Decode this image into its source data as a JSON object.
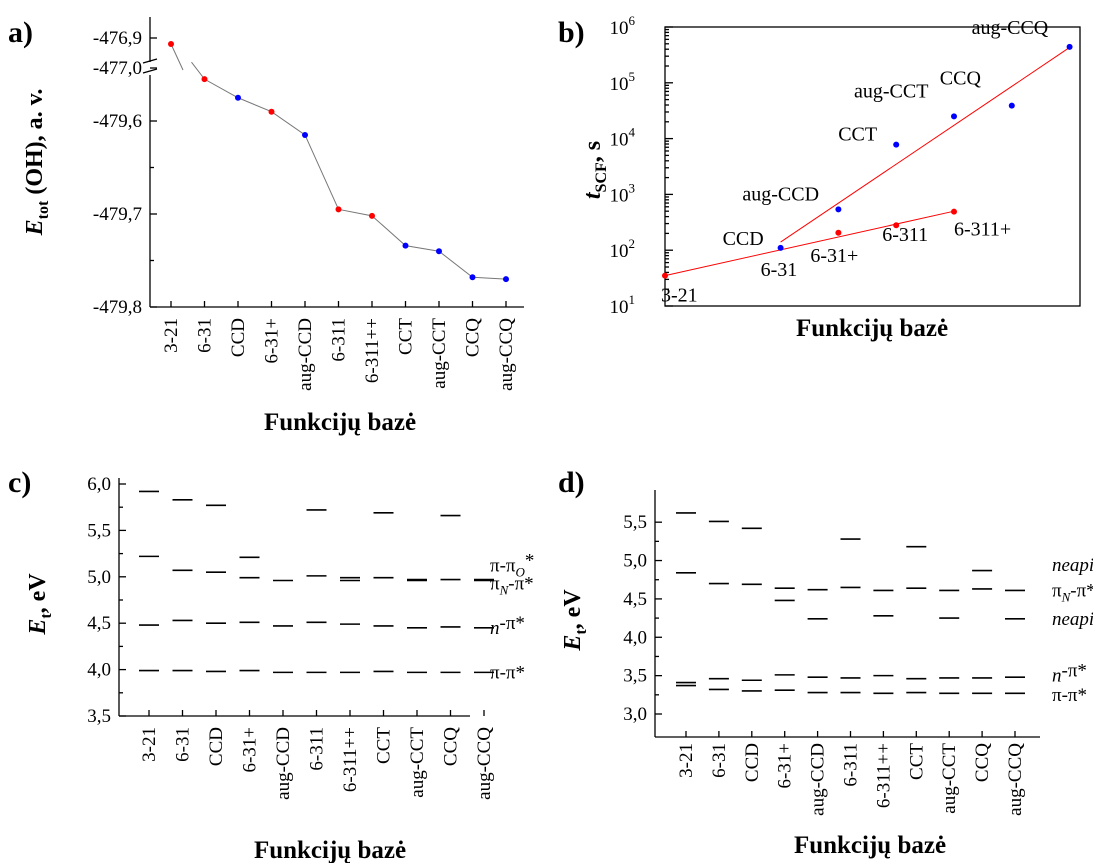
{
  "chart_data": [
    {
      "panel": "a)",
      "type": "line",
      "ylabel": "E",
      "ylabel_sub": "tot",
      "ylabel_rest": " (OH), a. v.",
      "xlabel": "Funkcijų bazė",
      "categories": [
        "3-21",
        "6-31",
        "CCD",
        "6-31+",
        "aug-CCD",
        "6-311",
        "6-311++",
        "CCT",
        "aug-CCT",
        "CCQ",
        "aug-CCQ"
      ],
      "series": [
        {
          "values": [
            -476.92,
            -479.555,
            -479.575,
            -479.59,
            -479.615,
            -479.695,
            -479.702,
            -479.734,
            -479.74,
            -479.768,
            -479.77
          ]
        }
      ],
      "point_colors": [
        "#ff0000",
        "#ff0000",
        "#0000ff",
        "#ff0000",
        "#0000ff",
        "#ff0000",
        "#ff0000",
        "#0000ff",
        "#0000ff",
        "#0000ff",
        "#0000ff"
      ],
      "yticks_upper": [
        "-476,9",
        "-477,0"
      ],
      "yticks_lower": [
        "-479,6",
        "-479,7",
        "-479,8"
      ],
      "axis_break": true
    },
    {
      "panel": "b)",
      "type": "scatter",
      "ylabel": "t",
      "ylabel_sub": "SCF",
      "ylabel_rest": ", s",
      "xlabel": "Funkcijų bazė",
      "yscale": "log",
      "ylim": [
        10,
        1000000
      ],
      "ytick_base": "10",
      "ytick_exps": [
        "1",
        "2",
        "3",
        "4",
        "5",
        "6"
      ],
      "points": [
        {
          "label": "3-21",
          "x": 0,
          "y": 35,
          "color": "#ff0000"
        },
        {
          "label": "6-31",
          "x": 2,
          "y": 110,
          "color": "#0000ff"
        },
        {
          "label": "CCD",
          "x": 2,
          "y": 110,
          "color": "#0000ff"
        },
        {
          "label": "6-31+",
          "x": 3,
          "y": 205,
          "color": "#ff0000"
        },
        {
          "label": "aug-CCD",
          "x": 3,
          "y": 540,
          "color": "#0000ff"
        },
        {
          "label": "6-311",
          "x": 4,
          "y": 280,
          "color": "#ff0000"
        },
        {
          "label": "CCT",
          "x": 4,
          "y": 7800,
          "color": "#0000ff"
        },
        {
          "label": "6-311+",
          "x": 5,
          "y": 490,
          "color": "#ff0000"
        },
        {
          "label": "aug-CCT",
          "x": 5,
          "y": 25000,
          "color": "#0000ff"
        },
        {
          "label": "CCQ",
          "x": 6,
          "y": 39000,
          "color": "#0000ff"
        },
        {
          "label": "aug-CCQ",
          "x": 7,
          "y": 440000,
          "color": "#0000ff"
        }
      ],
      "fit_lines": [
        {
          "color": "#ff0000",
          "from": [
            0,
            35
          ],
          "to": [
            5,
            500
          ]
        },
        {
          "color": "#ff0000",
          "from": [
            2,
            140
          ],
          "to": [
            7,
            430000
          ]
        }
      ]
    },
    {
      "panel": "c)",
      "type": "levels",
      "ylabel": "E",
      "ylabel_sub": "t",
      "ylabel_rest": ", eV",
      "xlabel": "Funkcijų bazė",
      "ylim": [
        3.5,
        6.0
      ],
      "yticks": [
        3.5,
        4.0,
        4.5,
        5.0,
        5.5,
        6.0
      ],
      "ytick_labels": [
        "3,5",
        "4,0",
        "4,5",
        "5,0",
        "5,5",
        "6,0"
      ],
      "categories": [
        "3-21",
        "6-31",
        "CCD",
        "6-31+",
        "aug-CCD",
        "6-311",
        "6-311++",
        "CCT",
        "aug-CCT",
        "CCQ",
        "aug-CCQ"
      ],
      "levels": [
        [
          3.99,
          4.48,
          5.22,
          5.92
        ],
        [
          3.99,
          4.53,
          5.07,
          5.83
        ],
        [
          3.98,
          4.5,
          5.05,
          5.77
        ],
        [
          3.99,
          4.51,
          4.99,
          5.21
        ],
        [
          3.97,
          4.47,
          4.96
        ],
        [
          3.97,
          4.51,
          5.01,
          5.72
        ],
        [
          3.97,
          4.49,
          4.96,
          4.99
        ],
        [
          3.98,
          4.47,
          4.99,
          5.69
        ],
        [
          3.97,
          4.45,
          4.96,
          4.97
        ],
        [
          3.97,
          4.46,
          4.97,
          5.66
        ],
        [
          3.97,
          4.45,
          4.96,
          4.97
        ]
      ],
      "annotations": [
        {
          "main": "π-π",
          "sub": "O",
          "sup": "*",
          "y": 5.12
        },
        {
          "main": "π",
          "sub": "N",
          "tail": "-π*",
          "y": 4.93
        },
        {
          "main": "n",
          "italic": true,
          "tail": "-π*",
          "y": 4.45
        },
        {
          "main": "π-π*",
          "y": 3.97
        }
      ]
    },
    {
      "panel": "d)",
      "type": "levels",
      "ylabel": "E",
      "ylabel_sub": "t",
      "ylabel_rest": ", eV",
      "xlabel": "Funkcijų bazė",
      "ylim": [
        3.0,
        5.75
      ],
      "yticks": [
        3.0,
        3.5,
        4.0,
        4.5,
        5.0,
        5.5
      ],
      "ytick_labels": [
        "3,0",
        "3,5",
        "4,0",
        "4,5",
        "5,0",
        "5,5"
      ],
      "categories": [
        "3-21",
        "6-31",
        "CCD",
        "6-31+",
        "aug-CCD",
        "6-311",
        "6-311++",
        "CCT",
        "aug-CCT",
        "CCQ",
        "aug-CCQ"
      ],
      "levels": [
        [
          3.37,
          3.41,
          4.84,
          5.62
        ],
        [
          3.32,
          3.46,
          4.7,
          5.51
        ],
        [
          3.3,
          3.44,
          4.69,
          5.42
        ],
        [
          3.31,
          3.51,
          4.48,
          4.64
        ],
        [
          3.28,
          3.48,
          4.24,
          4.62
        ],
        [
          3.28,
          3.47,
          4.65,
          5.28
        ],
        [
          3.27,
          3.5,
          4.28,
          4.61
        ],
        [
          3.28,
          3.46,
          4.64,
          5.18
        ],
        [
          3.27,
          3.47,
          4.25,
          4.61
        ],
        [
          3.27,
          3.47,
          4.63,
          4.87
        ],
        [
          3.27,
          3.48,
          4.24,
          4.61
        ]
      ],
      "annotations": [
        {
          "main": "neapibr.",
          "italic": true,
          "y": 4.94
        },
        {
          "main": "π",
          "sub": "N",
          "tail": "-π*",
          "y": 4.61
        },
        {
          "main": "neapibr.",
          "italic": true,
          "y": 4.24
        },
        {
          "main": "n",
          "italic": true,
          "tail": "-π*",
          "y": 3.5
        },
        {
          "main": "π-π*",
          "y": 3.25
        }
      ]
    }
  ]
}
